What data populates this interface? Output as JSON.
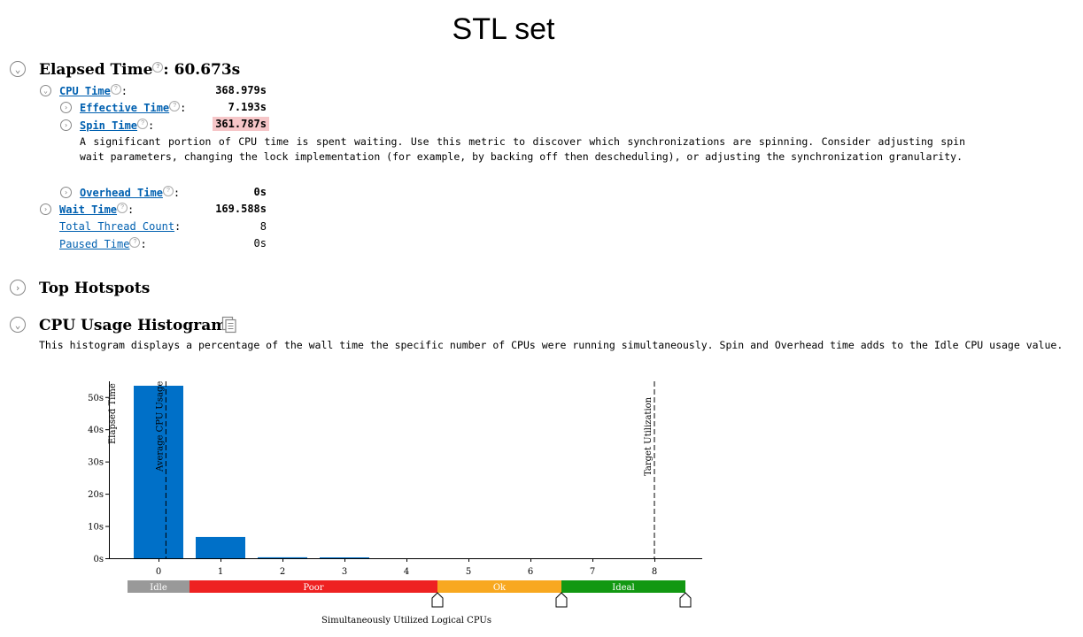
{
  "page": {
    "title": "STL set"
  },
  "summary": {
    "elapsed": {
      "label": "Elapsed Time",
      "value": ": 60.673s"
    },
    "metrics": [
      {
        "id": "cpu",
        "label": "CPU Time",
        "value": "368.979s",
        "bold": true
      },
      {
        "id": "effective",
        "label": "Effective Time",
        "value": "7.193s",
        "bold": true
      },
      {
        "id": "spin",
        "label": "Spin Time",
        "value": "361.787s",
        "bold": true
      },
      {
        "id": "overhead",
        "label": "Overhead Time",
        "value": "0s",
        "bold": true
      },
      {
        "id": "wait",
        "label": "Wait Time",
        "value": "169.588s",
        "bold": true
      },
      {
        "id": "threads",
        "label": "Total Thread Count",
        "value": "8",
        "bold": false
      },
      {
        "id": "paused",
        "label": "Paused Time",
        "value": "0s",
        "bold": false
      }
    ],
    "spin_note": "A significant portion of CPU time is spent waiting. Use this metric to discover which synchronizations are spinning. Consider adjusting spin wait parameters, changing the lock implementation (for example, by backing off then descheduling), or adjusting the synchronization granularity."
  },
  "sections": {
    "top_hotspots": {
      "label": "Top Hotspots"
    },
    "histogram": {
      "label": "CPU Usage Histogram",
      "description": "This histogram displays a percentage of the wall time the specific number of CPUs were running simultaneously. Spin and Overhead time adds to the Idle CPU usage value."
    }
  },
  "chart_data": {
    "type": "bar",
    "categories": [
      "0",
      "1",
      "2",
      "3",
      "4",
      "5",
      "6",
      "7",
      "8"
    ],
    "values": [
      53.5,
      6.6,
      0.3,
      0.25,
      0,
      0,
      0,
      0,
      0
    ],
    "ylabel": "Elapsed Time",
    "xlabel": "Simultaneously Utilized Logical CPUs",
    "yticks": [
      "0s",
      "10s",
      "20s",
      "30s",
      "40s",
      "50s"
    ],
    "ylim": [
      0,
      55
    ],
    "bar_color": "#0070c8",
    "markers": [
      {
        "label": "Average CPU Usage",
        "x": 0.12
      },
      {
        "label": "Target Utilization",
        "x": 8.0
      }
    ],
    "bands": [
      {
        "label": "Idle",
        "from": -0.5,
        "to": 0.5,
        "color": "#999999"
      },
      {
        "label": "Poor",
        "from": 0.5,
        "to": 4.5,
        "color": "#ee2222"
      },
      {
        "label": "Ok",
        "from": 4.5,
        "to": 6.5,
        "color": "#f8a820"
      },
      {
        "label": "Ideal",
        "from": 6.5,
        "to": 8.5,
        "color": "#129812"
      }
    ],
    "thresholds": [
      4.5,
      6.5,
      8.5
    ]
  }
}
